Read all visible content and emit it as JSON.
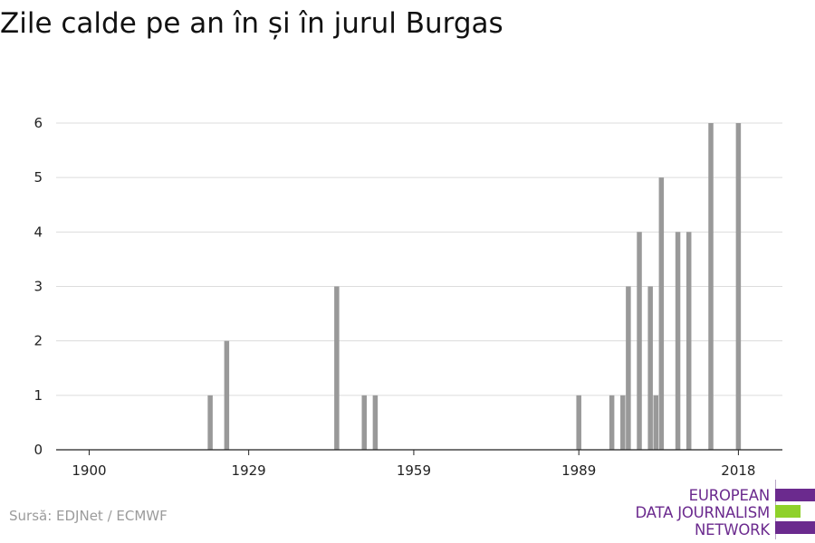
{
  "title": "Zile calde pe an în și în jurul Burgas",
  "source": "Sursă: EDJNet / ECMWF",
  "logo": {
    "lines": [
      "EUROPEAN",
      "DATA JOURNALISM",
      "NETWORK"
    ],
    "colors": {
      "purple": "#6b2a8e",
      "green": "#8fd12a"
    }
  },
  "chart_data": {
    "type": "bar",
    "title": "Zile calde pe an în și în jurul Burgas",
    "xlabel": "",
    "ylabel": "",
    "xlim": [
      1894,
      2026
    ],
    "ylim": [
      0,
      6
    ],
    "xticks": [
      1900,
      1929,
      1959,
      1989,
      2018
    ],
    "yticks": [
      0,
      1,
      2,
      3,
      4,
      5,
      6
    ],
    "grid": true,
    "bar_color": "#999999",
    "x": [
      1922,
      1925,
      1945,
      1950,
      1952,
      1989,
      1995,
      1997,
      1998,
      2000,
      2002,
      2003,
      2004,
      2007,
      2009,
      2013,
      2018
    ],
    "values": [
      1,
      2,
      3,
      1,
      1,
      1,
      1,
      1,
      3,
      4,
      3,
      1,
      5,
      4,
      4,
      6,
      6
    ]
  }
}
